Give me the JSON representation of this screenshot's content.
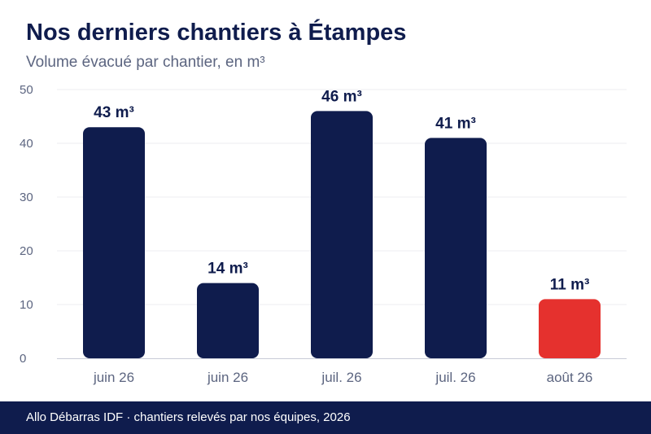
{
  "chart_data": {
    "type": "bar",
    "title": "Nos derniers chantiers à Étampes",
    "subtitle": "Volume évacué par chantier, en m³",
    "categories": [
      "juin 26",
      "juin 26",
      "juil. 26",
      "juil. 26",
      "août 26"
    ],
    "values": [
      43,
      14,
      46,
      41,
      11
    ],
    "value_labels": [
      "43 m³",
      "14 m³",
      "46 m³",
      "41 m³",
      "11 m³"
    ],
    "ylim": [
      0,
      50
    ],
    "yticks": [
      0,
      10,
      20,
      30,
      40,
      50
    ],
    "grid": true,
    "xlabel": "",
    "ylabel": "",
    "colors": {
      "bar": "#0f1c4d",
      "highlight": "#e5312e",
      "highlight_index": 4
    }
  },
  "footer": {
    "text": "Allo Débarras IDF · chantiers relevés par nos équipes, 2026"
  }
}
